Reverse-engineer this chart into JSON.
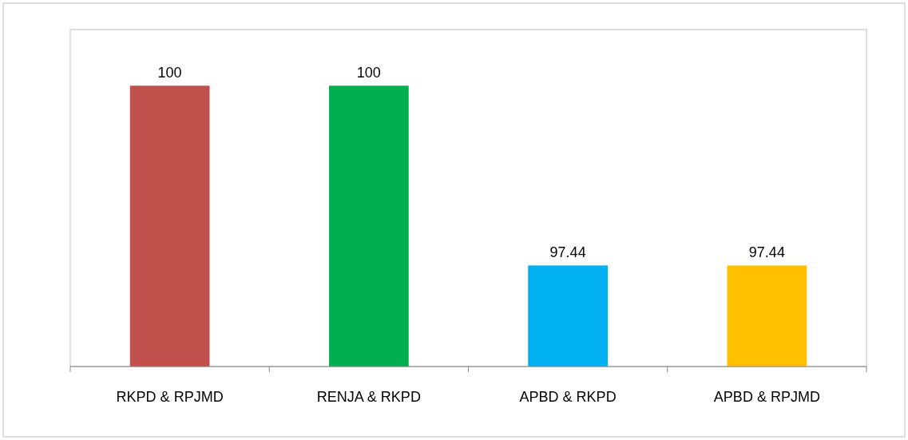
{
  "chart_data": {
    "type": "bar",
    "categories": [
      "RKPD & RPJMD",
      "RENJA & RKPD",
      "APBD & RKPD",
      "APBD & RPJMD"
    ],
    "values": [
      100,
      100,
      97.44,
      97.44
    ],
    "colors": [
      "#c0504d",
      "#00b050",
      "#00b0f0",
      "#ffc000"
    ],
    "ylim": [
      96,
      100.8
    ],
    "data_labels": true
  }
}
